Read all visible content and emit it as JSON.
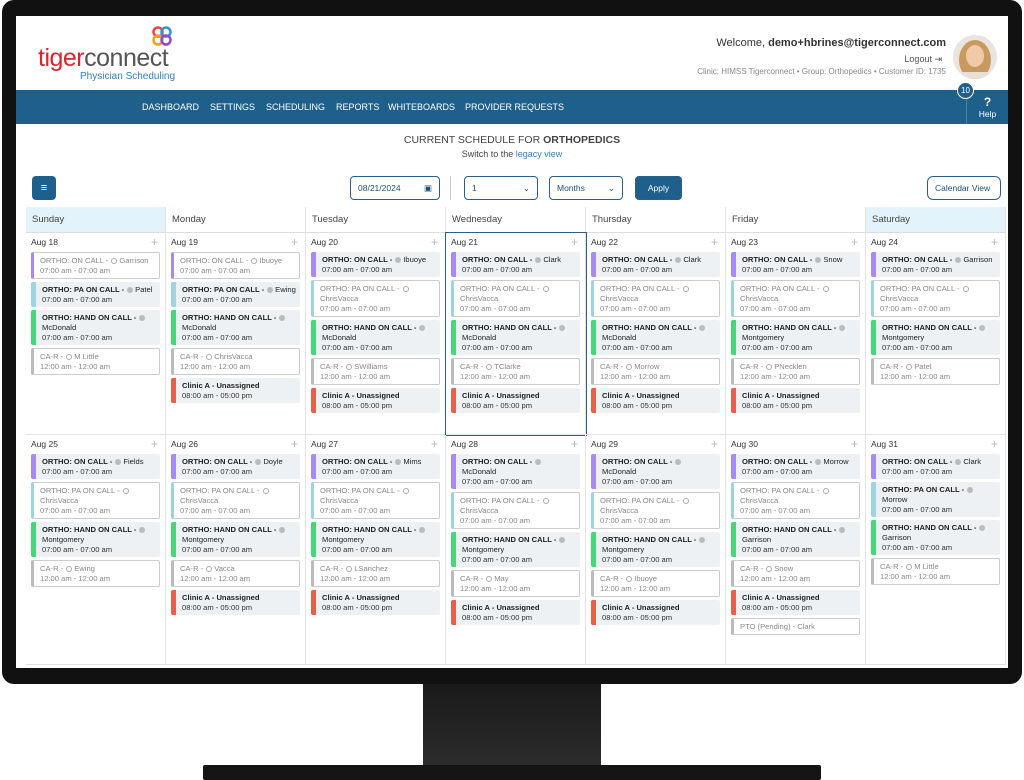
{
  "header": {
    "logo_tiger": "tiger",
    "logo_connect": "connect",
    "logo_sub": "Physician Scheduling",
    "welcome": "Welcome,",
    "user": "demo+hbrines@tigerconnect.com",
    "logout": "Logout",
    "clinic": "Clinic: HIMSS Tigerconnect • Group: Orthopedics • Customer ID: 1735"
  },
  "nav": {
    "items": [
      "DASHBOARD",
      "SETTINGS",
      "SCHEDULING",
      "REPORTS",
      "WHITEBOARDS",
      "PROVIDER REQUESTS"
    ],
    "badge": "10",
    "help_icon": "?",
    "help": "Help"
  },
  "title": {
    "prefix": "CURRENT SCHEDULE FOR",
    "group": "ORTHOPEDICS",
    "switch": "Switch to the",
    "link": "legacy view"
  },
  "toolbar": {
    "date": "08/21/2024",
    "count": "1",
    "unit": "Months",
    "apply": "Apply",
    "view": "Calendar View"
  },
  "calendar": {
    "days": [
      "Sunday",
      "Monday",
      "Tuesday",
      "Wednesday",
      "Thursday",
      "Friday",
      "Saturday"
    ],
    "selected": "Aug 21",
    "weeks": [
      [
        {
          "date": "Aug 18",
          "events": [
            {
              "title": "ORTHO: ON CALL -",
              "person": "Garrison",
              "time": "07:00 am - 07:00 am",
              "color": "#a68cf0",
              "outlined": true
            },
            {
              "title": "ORTHO: PA ON CALL -",
              "person": "Patel",
              "time": "07:00 am - 07:00 am",
              "color": "#9fd3df",
              "outlined": false
            },
            {
              "title": "ORTHO: HAND ON CALL -",
              "person": "McDonald",
              "time": "07:00 am - 07:00 am",
              "color": "#48d67a",
              "outlined": false
            },
            {
              "title": "CA-R -",
              "person": "M Little",
              "time": "12:00 am - 12:00 am",
              "color": "#bbbbbb",
              "outlined": true
            }
          ]
        },
        {
          "date": "Aug 19",
          "events": [
            {
              "title": "ORTHO: ON CALL -",
              "person": "Ibuoye",
              "time": "07:00 am - 07:00 am",
              "color": "#a68cf0",
              "outlined": true
            },
            {
              "title": "ORTHO: PA ON CALL -",
              "person": "Ewing",
              "time": "07:00 am - 07:00 am",
              "color": "#9fd3df",
              "outlined": false
            },
            {
              "title": "ORTHO: HAND ON CALL -",
              "person": "McDonald",
              "time": "07:00 am - 07:00 am",
              "color": "#48d67a",
              "outlined": false
            },
            {
              "title": "CA-R -",
              "person": "ChrisVacca",
              "time": "12:00 am - 12:00 am",
              "color": "#bbbbbb",
              "outlined": true
            },
            {
              "title": "Clinic A - Unassigned",
              "time": "08:00 am - 05:00 pm",
              "color": "#e4614a",
              "outlined": false
            }
          ]
        },
        {
          "date": "Aug 20",
          "events": [
            {
              "title": "ORTHO: ON CALL -",
              "person": "Ibuoye",
              "time": "07:00 am - 07:00 am",
              "color": "#a68cf0",
              "outlined": false
            },
            {
              "title": "ORTHO: PA ON CALL -",
              "person": "ChrisVacca",
              "time": "07:00 am - 07:00 am",
              "color": "#9fd3df",
              "outlined": true
            },
            {
              "title": "ORTHO: HAND ON CALL -",
              "person": "McDonald",
              "time": "07:00 am - 07:00 am",
              "color": "#48d67a",
              "outlined": false
            },
            {
              "title": "CA-R -",
              "person": "SWilliams",
              "time": "12:00 am - 12:00 am",
              "color": "#bbbbbb",
              "outlined": true
            },
            {
              "title": "Clinic A - Unassigned",
              "time": "08:00 am - 05:00 pm",
              "color": "#e4614a",
              "outlined": false
            }
          ]
        },
        {
          "date": "Aug 21",
          "events": [
            {
              "title": "ORTHO: ON CALL -",
              "person": "Clark",
              "time": "07:00 am - 07:00 am",
              "color": "#a68cf0",
              "outlined": false
            },
            {
              "title": "ORTHO: PA ON CALL -",
              "person": "ChrisVacca",
              "time": "07:00 am - 07:00 am",
              "color": "#9fd3df",
              "outlined": true
            },
            {
              "title": "ORTHO: HAND ON CALL -",
              "person": "McDonald",
              "time": "07:00 am - 07:00 am",
              "color": "#48d67a",
              "outlined": false
            },
            {
              "title": "CA-R -",
              "person": "TClarke",
              "time": "12:00 am - 12:00 am",
              "color": "#bbbbbb",
              "outlined": true
            },
            {
              "title": "Clinic A - Unassigned",
              "time": "08:00 am - 05:00 pm",
              "color": "#e4614a",
              "outlined": false
            }
          ]
        },
        {
          "date": "Aug 22",
          "events": [
            {
              "title": "ORTHO: ON CALL -",
              "person": "Clark",
              "time": "07:00 am - 07:00 am",
              "color": "#a68cf0",
              "outlined": false
            },
            {
              "title": "ORTHO: PA ON CALL -",
              "person": "ChrisVacca",
              "time": "07:00 am - 07:00 am",
              "color": "#9fd3df",
              "outlined": true
            },
            {
              "title": "ORTHO: HAND ON CALL -",
              "person": "McDonald",
              "time": "07:00 am - 07:00 am",
              "color": "#48d67a",
              "outlined": false
            },
            {
              "title": "CA-R -",
              "person": "Morrow",
              "time": "12:00 am - 12:00 am",
              "color": "#bbbbbb",
              "outlined": true
            },
            {
              "title": "Clinic A - Unassigned",
              "time": "08:00 am - 05:00 pm",
              "color": "#e4614a",
              "outlined": false
            }
          ]
        },
        {
          "date": "Aug 23",
          "events": [
            {
              "title": "ORTHO: ON CALL -",
              "person": "Snow",
              "time": "07:00 am - 07:00 am",
              "color": "#a68cf0",
              "outlined": false
            },
            {
              "title": "ORTHO: PA ON CALL -",
              "person": "ChrisVacca",
              "time": "07:00 am - 07:00 am",
              "color": "#9fd3df",
              "outlined": true
            },
            {
              "title": "ORTHO: HAND ON CALL -",
              "person": "Montgomery",
              "time": "07:00 am - 07:00 am",
              "color": "#48d67a",
              "outlined": false
            },
            {
              "title": "CA-R -",
              "person": "PNecklen",
              "time": "12:00 am - 12:00 am",
              "color": "#bbbbbb",
              "outlined": true
            },
            {
              "title": "Clinic A - Unassigned",
              "time": "08:00 am - 05:00 pm",
              "color": "#e4614a",
              "outlined": false
            }
          ]
        },
        {
          "date": "Aug 24",
          "events": [
            {
              "title": "ORTHO: ON CALL -",
              "person": "Garrison",
              "time": "07:00 am - 07:00 am",
              "color": "#a68cf0",
              "outlined": false
            },
            {
              "title": "ORTHO: PA ON CALL -",
              "person": "ChrisVacca",
              "time": "07:00 am - 07:00 am",
              "color": "#9fd3df",
              "outlined": true
            },
            {
              "title": "ORTHO: HAND ON CALL -",
              "person": "Montgomery",
              "time": "07:00 am - 07:00 am",
              "color": "#48d67a",
              "outlined": false
            },
            {
              "title": "CA-R -",
              "person": "Patel",
              "time": "12:00 am - 12:00 am",
              "color": "#bbbbbb",
              "outlined": true
            }
          ]
        }
      ],
      [
        {
          "date": "Aug 25",
          "events": [
            {
              "title": "ORTHO: ON CALL -",
              "person": "Fields",
              "time": "07:00 am - 07:00 am",
              "color": "#a68cf0",
              "outlined": false
            },
            {
              "title": "ORTHO: PA ON CALL -",
              "person": "ChrisVacca",
              "time": "07:00 am - 07:00 am",
              "color": "#9fd3df",
              "outlined": true
            },
            {
              "title": "ORTHO: HAND ON CALL -",
              "person": "Montgomery",
              "time": "07:00 am - 07:00 am",
              "color": "#48d67a",
              "outlined": false
            },
            {
              "title": "CA-R -",
              "person": "Ewing",
              "time": "12:00 am - 12:00 am",
              "color": "#bbbbbb",
              "outlined": true
            }
          ]
        },
        {
          "date": "Aug 26",
          "events": [
            {
              "title": "ORTHO: ON CALL -",
              "person": "Doyle",
              "time": "07:00 am - 07:00 am",
              "color": "#a68cf0",
              "outlined": false
            },
            {
              "title": "ORTHO: PA ON CALL -",
              "person": "ChrisVacca",
              "time": "07:00 am - 07:00 am",
              "color": "#9fd3df",
              "outlined": true
            },
            {
              "title": "ORTHO: HAND ON CALL -",
              "person": "Montgomery",
              "time": "07:00 am - 07:00 am",
              "color": "#48d67a",
              "outlined": false
            },
            {
              "title": "CA-R -",
              "person": "Vacca",
              "time": "12:00 am - 12:00 am",
              "color": "#bbbbbb",
              "outlined": true
            },
            {
              "title": "Clinic A - Unassigned",
              "time": "08:00 am - 05:00 pm",
              "color": "#e4614a",
              "outlined": false
            }
          ]
        },
        {
          "date": "Aug 27",
          "events": [
            {
              "title": "ORTHO: ON CALL -",
              "person": "Mims",
              "time": "07:00 am - 07:00 am",
              "color": "#a68cf0",
              "outlined": false
            },
            {
              "title": "ORTHO: PA ON CALL -",
              "person": "ChrisVacca",
              "time": "07:00 am - 07:00 am",
              "color": "#9fd3df",
              "outlined": true
            },
            {
              "title": "ORTHO: HAND ON CALL -",
              "person": "Montgomery",
              "time": "07:00 am - 07:00 am",
              "color": "#48d67a",
              "outlined": false
            },
            {
              "title": "CA-R -",
              "person": "LSanchez",
              "time": "12:00 am - 12:00 am",
              "color": "#bbbbbb",
              "outlined": true
            },
            {
              "title": "Clinic A - Unassigned",
              "time": "08:00 am - 05:00 pm",
              "color": "#e4614a",
              "outlined": false
            }
          ]
        },
        {
          "date": "Aug 28",
          "events": [
            {
              "title": "ORTHO: ON CALL -",
              "person": "McDonald",
              "time": "07:00 am - 07:00 am",
              "color": "#a68cf0",
              "outlined": false
            },
            {
              "title": "ORTHO: PA ON CALL -",
              "person": "ChrisVacca",
              "time": "07:00 am - 07:00 am",
              "color": "#9fd3df",
              "outlined": true
            },
            {
              "title": "ORTHO: HAND ON CALL -",
              "person": "Montgomery",
              "time": "07:00 am - 07:00 am",
              "color": "#48d67a",
              "outlined": false
            },
            {
              "title": "CA-R -",
              "person": "May",
              "time": "12:00 am - 12:00 am",
              "color": "#bbbbbb",
              "outlined": true
            },
            {
              "title": "Clinic A - Unassigned",
              "time": "08:00 am - 05:00 pm",
              "color": "#e4614a",
              "outlined": false
            }
          ]
        },
        {
          "date": "Aug 29",
          "events": [
            {
              "title": "ORTHO: ON CALL -",
              "person": "McDonald",
              "time": "07:00 am - 07:00 am",
              "color": "#a68cf0",
              "outlined": false
            },
            {
              "title": "ORTHO: PA ON CALL -",
              "person": "ChrisVacca",
              "time": "07:00 am - 07:00 am",
              "color": "#9fd3df",
              "outlined": true
            },
            {
              "title": "ORTHO: HAND ON CALL -",
              "person": "Montgomery",
              "time": "07:00 am - 07:00 am",
              "color": "#48d67a",
              "outlined": false
            },
            {
              "title": "CA-R -",
              "person": "Ibuoye",
              "time": "12:00 am - 12:00 am",
              "color": "#bbbbbb",
              "outlined": true
            },
            {
              "title": "Clinic A - Unassigned",
              "time": "08:00 am - 05:00 pm",
              "color": "#e4614a",
              "outlined": false
            }
          ]
        },
        {
          "date": "Aug 30",
          "events": [
            {
              "title": "ORTHO: ON CALL -",
              "person": "Morrow",
              "time": "07:00 am - 07:00 am",
              "color": "#a68cf0",
              "outlined": false
            },
            {
              "title": "ORTHO: PA ON CALL -",
              "person": "ChrisVacca",
              "time": "07:00 am - 07:00 am",
              "color": "#9fd3df",
              "outlined": true
            },
            {
              "title": "ORTHO: HAND ON CALL -",
              "person": "Garrison",
              "time": "07:00 am - 07:00 am",
              "color": "#48d67a",
              "outlined": false
            },
            {
              "title": "CA-R -",
              "person": "Snow",
              "time": "12:00 am - 12:00 am",
              "color": "#bbbbbb",
              "outlined": true
            },
            {
              "title": "Clinic A - Unassigned",
              "time": "08:00 am - 05:00 pm",
              "color": "#e4614a",
              "outlined": false
            },
            {
              "title": "PTO (Pending) - Clark",
              "color": "#bbbbbb",
              "outlined": true
            }
          ]
        },
        {
          "date": "Aug 31",
          "events": [
            {
              "title": "ORTHO: ON CALL -",
              "person": "Clark",
              "time": "07:00 am - 07:00 am",
              "color": "#a68cf0",
              "outlined": false
            },
            {
              "title": "ORTHO: PA ON CALL -",
              "person": "Morrow",
              "time": "07:00 am - 07:00 am",
              "color": "#9fd3df",
              "outlined": false
            },
            {
              "title": "ORTHO: HAND ON CALL -",
              "person": "Garrison",
              "time": "07:00 am - 07:00 am",
              "color": "#48d67a",
              "outlined": false
            },
            {
              "title": "CA-R -",
              "person": "M Little",
              "time": "12:00 am - 12:00 am",
              "color": "#bbbbbb",
              "outlined": true
            }
          ]
        }
      ]
    ]
  }
}
